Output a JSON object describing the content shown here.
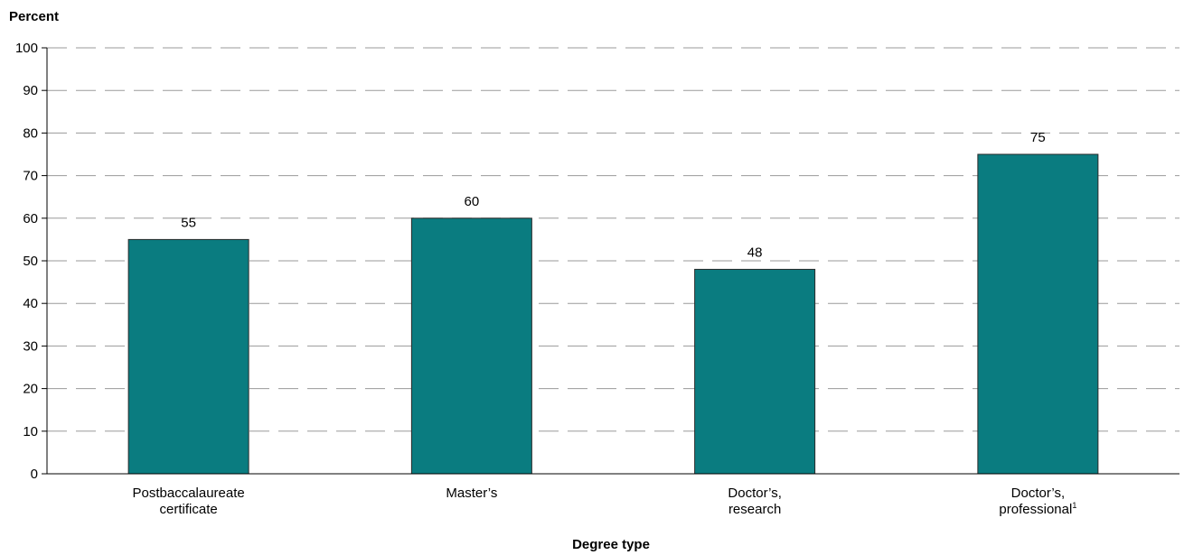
{
  "chart_data": {
    "type": "bar",
    "ylabel": "Percent",
    "xlabel": "Degree type",
    "ylim": [
      0,
      100
    ],
    "yticks": [
      0,
      10,
      20,
      30,
      40,
      50,
      60,
      70,
      80,
      90,
      100
    ],
    "grid": true,
    "bar_color": "#0a7c80",
    "categories": [
      [
        "Postbaccalaureate",
        "certificate"
      ],
      [
        "Master’s"
      ],
      [
        "Doctor’s,",
        "research"
      ],
      [
        "Doctor’s,",
        "professional"
      ]
    ],
    "category_footnotes": [
      "",
      "",
      "",
      "1"
    ],
    "values": [
      55,
      60,
      48,
      75
    ],
    "value_labels": [
      "55",
      "60",
      "48",
      "75"
    ]
  }
}
